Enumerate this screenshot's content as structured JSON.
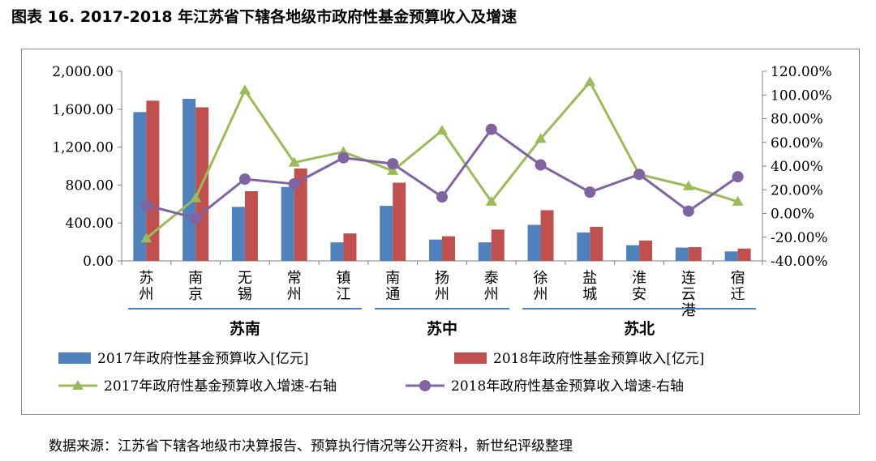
{
  "figure_title": "图表 16. 2017-2018 年江苏省下辖各地级市政府性基金预算收入及增速",
  "source_note": "数据来源：江苏省下辖各地级市决算报告、预算执行情况等公开资料，新世纪评级整理",
  "colors": {
    "bar2017": "#4f81bd",
    "bar2018": "#c0504d",
    "line2017": "#9bbb59",
    "line2018": "#8064a2",
    "group_line": "#4f81bd"
  },
  "chart_data": {
    "type": "bar",
    "title": "",
    "categories": [
      "苏州",
      "南京",
      "无锡",
      "常州",
      "镇江",
      "南通",
      "扬州",
      "泰州",
      "徐州",
      "盐城",
      "淮安",
      "连云港",
      "宿迁"
    ],
    "category_labels": [
      [
        "苏",
        "州"
      ],
      [
        "南",
        "京"
      ],
      [
        "无",
        "锡"
      ],
      [
        "常",
        "州"
      ],
      [
        "镇",
        "江"
      ],
      [
        "南",
        "通"
      ],
      [
        "扬",
        "州"
      ],
      [
        "泰",
        "州"
      ],
      [
        "徐",
        "州"
      ],
      [
        "盐",
        "城"
      ],
      [
        "淮",
        "安"
      ],
      [
        "连",
        "云",
        "港"
      ],
      [
        "宿",
        "迁"
      ]
    ],
    "groups": [
      {
        "name": "苏南",
        "start": 0,
        "end": 4
      },
      {
        "name": "苏中",
        "start": 5,
        "end": 7
      },
      {
        "name": "苏北",
        "start": 8,
        "end": 12
      }
    ],
    "series": [
      {
        "name": "2017年政府性基金预算收入[亿元]",
        "type": "bar",
        "axis": "left",
        "values": [
          1570,
          1710,
          570,
          780,
          195,
          580,
          225,
          195,
          380,
          300,
          165,
          140,
          100
        ]
      },
      {
        "name": "2018年政府性基金预算收入[亿元]",
        "type": "bar",
        "axis": "left",
        "values": [
          1690,
          1620,
          735,
          975,
          290,
          825,
          260,
          330,
          535,
          360,
          215,
          145,
          130
        ]
      },
      {
        "name": "2017年政府性基金预算收入增速-右轴",
        "type": "line",
        "marker": "triangle",
        "axis": "right",
        "values": [
          -21,
          13,
          104,
          43,
          52,
          36,
          70,
          10,
          63,
          111,
          33,
          23,
          10
        ]
      },
      {
        "name": "2018年政府性基金预算收入增速-右轴",
        "type": "line",
        "marker": "circle",
        "axis": "right",
        "values": [
          7,
          -4,
          29,
          25,
          47,
          42,
          14,
          71,
          41,
          18,
          33,
          2,
          31
        ]
      }
    ],
    "left_axis": {
      "min": 0,
      "max": 2000,
      "step": 400,
      "tick_labels": [
        "0.00",
        "400.00",
        "800.00",
        "1,200.00",
        "1,600.00",
        "2,000.00"
      ]
    },
    "right_axis": {
      "min": -40,
      "max": 120,
      "step": 20,
      "tick_labels": [
        "-40.00%",
        "-20.00%",
        "0.00%",
        "20.00%",
        "40.00%",
        "60.00%",
        "80.00%",
        "100.00%",
        "120.00%"
      ]
    },
    "grid": false,
    "legend_position": "bottom"
  }
}
